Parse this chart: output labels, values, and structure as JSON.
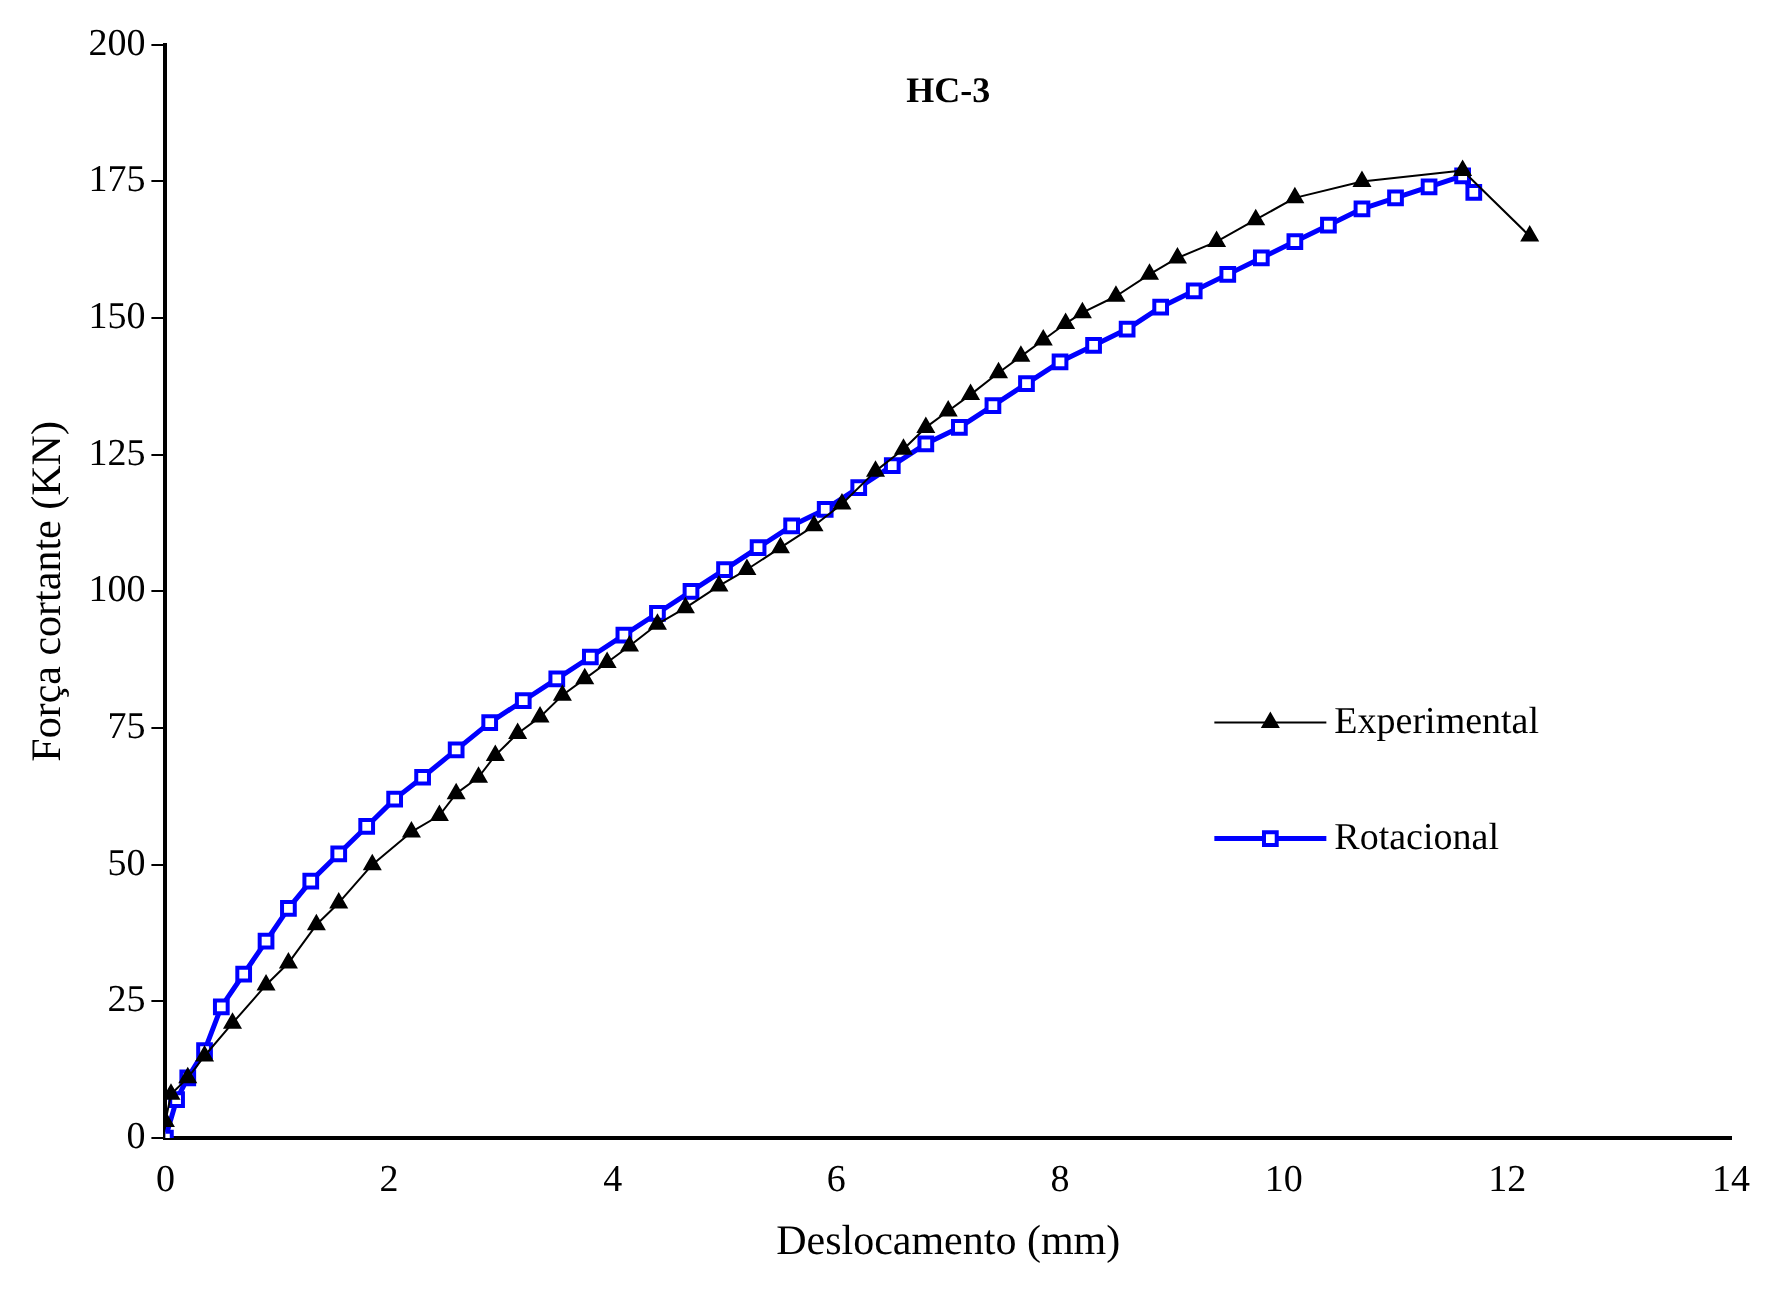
{
  "chart_data": {
    "type": "line",
    "title": "HC-3",
    "xlabel": "Deslocamento (mm)",
    "ylabel": "Força cortante (KN)",
    "xlim": [
      0,
      14
    ],
    "xticks": [
      0,
      2,
      4,
      6,
      8,
      10,
      12,
      14
    ],
    "ylim": [
      0,
      200
    ],
    "yticks": [
      0,
      25,
      50,
      75,
      100,
      125,
      150,
      175,
      200
    ],
    "grid": false,
    "legend": "right",
    "series": [
      {
        "name": "Experimental",
        "color": "#000000",
        "marker": "triangle",
        "x": [
          0,
          0.05,
          0.2,
          0.35,
          0.6,
          0.9,
          1.1,
          1.35,
          1.55,
          1.85,
          2.2,
          2.45,
          2.6,
          2.8,
          2.95,
          3.15,
          3.35,
          3.55,
          3.75,
          3.95,
          4.15,
          4.4,
          4.65,
          4.95,
          5.2,
          5.5,
          5.8,
          6.05,
          6.35,
          6.6,
          6.8,
          7.0,
          7.2,
          7.45,
          7.65,
          7.85,
          8.05,
          8.2,
          8.5,
          8.8,
          9.05,
          9.4,
          9.75,
          10.1,
          10.7,
          11.6,
          12.2
        ],
        "values": [
          3,
          8,
          11,
          15,
          21,
          28,
          32,
          39,
          43,
          50,
          56,
          59,
          63,
          66,
          70,
          74,
          77,
          81,
          84,
          87,
          90,
          94,
          97,
          101,
          104,
          108,
          112,
          116,
          122,
          126,
          130,
          133,
          136,
          140,
          143,
          146,
          149,
          151,
          154,
          158,
          161,
          164,
          168,
          172,
          175,
          177,
          165
        ]
      },
      {
        "name": "Rotacional",
        "color": "#0000ff",
        "marker": "square",
        "x": [
          0,
          0.1,
          0.2,
          0.35,
          0.5,
          0.7,
          0.9,
          1.1,
          1.3,
          1.55,
          1.8,
          2.05,
          2.3,
          2.6,
          2.9,
          3.2,
          3.5,
          3.8,
          4.1,
          4.4,
          4.7,
          5.0,
          5.3,
          5.6,
          5.9,
          6.2,
          6.5,
          6.8,
          7.1,
          7.4,
          7.7,
          8.0,
          8.3,
          8.6,
          8.9,
          9.2,
          9.5,
          9.8,
          10.1,
          10.4,
          10.7,
          11.0,
          11.3,
          11.6,
          11.7
        ],
        "values": [
          0,
          7,
          11,
          16,
          24,
          30,
          36,
          42,
          47,
          52,
          57,
          62,
          66,
          71,
          76,
          80,
          84,
          88,
          92,
          96,
          100,
          104,
          108,
          112,
          115,
          119,
          123,
          127,
          130,
          134,
          138,
          142,
          145,
          148,
          152,
          155,
          158,
          161,
          164,
          167,
          170,
          172,
          174,
          176,
          173
        ]
      }
    ]
  }
}
